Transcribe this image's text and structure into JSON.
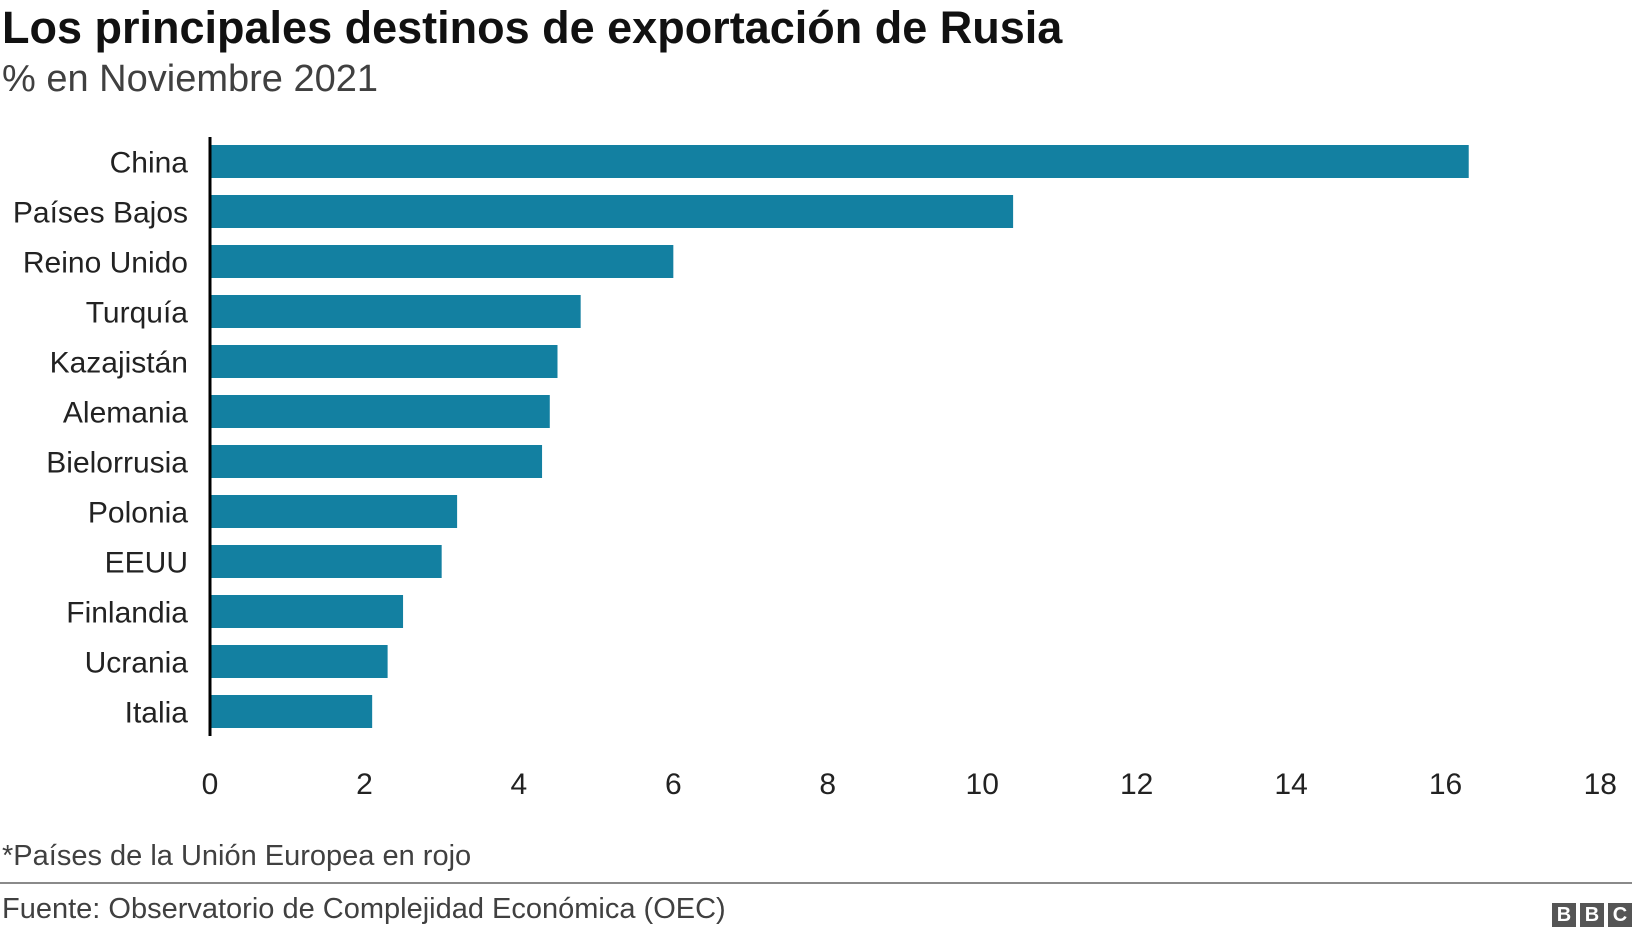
{
  "title": "Los principales destinos de exportación de Rusia",
  "subtitle": "% en Noviembre 2021",
  "note": "*Países de la Unión Europea en rojo",
  "source": "Fuente: Observatorio de Complejidad Económica (OEC)",
  "logo": [
    "B",
    "B",
    "C"
  ],
  "colors": {
    "bar": "#1380A1",
    "axis": "#000000",
    "text": "#222222"
  },
  "chart_data": {
    "type": "bar",
    "orientation": "horizontal",
    "categories": [
      "China",
      "Países Bajos",
      "Reino Unido",
      "Turquía",
      "Kazajistán",
      "Alemania",
      "Bielorrusia",
      "Polonia",
      "EEUU",
      "Finlandia",
      "Ucrania",
      "Italia"
    ],
    "values": [
      16.3,
      10.4,
      6.0,
      4.8,
      4.5,
      4.4,
      4.3,
      3.2,
      3.0,
      2.5,
      2.3,
      2.1
    ],
    "xlim": [
      0,
      18
    ],
    "xticks": [
      "0",
      "2",
      "4",
      "6",
      "8",
      "10",
      "12",
      "14",
      "16",
      "18"
    ],
    "grid": false,
    "legend": "none"
  }
}
